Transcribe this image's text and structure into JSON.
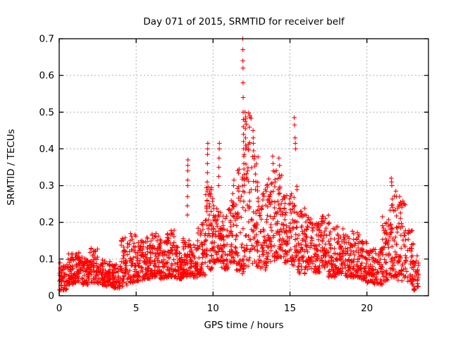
{
  "window": {
    "background": "#ffffff"
  },
  "chart_data": {
    "type": "scatter",
    "title": "Day 071 of 2015, SRMTID for receiver belf",
    "xlabel": "GPS time / hours",
    "ylabel": "SRMTID / TECUs",
    "xlim": [
      0,
      24
    ],
    "ylim": [
      0,
      0.7
    ],
    "xtick_values": [
      0,
      5,
      10,
      15,
      20
    ],
    "xtick_labels": [
      "0",
      "5",
      "10",
      "15",
      "20"
    ],
    "ytick_values": [
      0,
      0.1,
      0.2,
      0.3,
      0.4,
      0.5,
      0.6,
      0.7
    ],
    "ytick_labels": [
      "0",
      "0.1",
      "0.2",
      "0.3",
      "0.4",
      "0.5",
      "0.6",
      "0.7"
    ],
    "grid": true,
    "legend": null,
    "marker": "plus",
    "colors": {
      "marker": "#ff0000",
      "grid": "#b0b0b0",
      "axis": "#000000",
      "text": "#000000",
      "background": "#ffffff"
    },
    "bins_format": "[t_start_hours, value_min_TECUs, value_max_TECUs, point_count] per 0.5 h bin",
    "bins": [
      [
        0.0,
        0.015,
        0.09,
        50
      ],
      [
        0.5,
        0.03,
        0.115,
        55
      ],
      [
        1.0,
        0.035,
        0.12,
        55
      ],
      [
        1.5,
        0.03,
        0.105,
        50
      ],
      [
        2.0,
        0.035,
        0.13,
        55
      ],
      [
        2.5,
        0.03,
        0.1,
        50
      ],
      [
        3.0,
        0.025,
        0.095,
        50
      ],
      [
        3.5,
        0.02,
        0.085,
        50
      ],
      [
        4.0,
        0.025,
        0.16,
        50
      ],
      [
        4.5,
        0.035,
        0.17,
        52
      ],
      [
        5.0,
        0.04,
        0.15,
        58
      ],
      [
        5.5,
        0.045,
        0.16,
        58
      ],
      [
        6.0,
        0.05,
        0.17,
        58
      ],
      [
        6.5,
        0.045,
        0.155,
        58
      ],
      [
        7.0,
        0.05,
        0.18,
        58
      ],
      [
        7.5,
        0.045,
        0.14,
        52
      ],
      [
        8.0,
        0.05,
        0.16,
        52
      ],
      [
        8.5,
        0.05,
        0.14,
        52
      ],
      [
        9.0,
        0.055,
        0.2,
        52
      ],
      [
        9.5,
        0.07,
        0.3,
        58
      ],
      [
        10.0,
        0.09,
        0.25,
        58
      ],
      [
        10.5,
        0.07,
        0.22,
        52
      ],
      [
        11.0,
        0.09,
        0.28,
        52
      ],
      [
        11.5,
        0.06,
        0.35,
        52
      ],
      [
        12.0,
        0.08,
        0.5,
        58
      ],
      [
        12.5,
        0.08,
        0.4,
        52
      ],
      [
        13.0,
        0.07,
        0.3,
        52
      ],
      [
        13.5,
        0.09,
        0.33,
        52
      ],
      [
        14.0,
        0.1,
        0.35,
        58
      ],
      [
        14.5,
        0.09,
        0.28,
        52
      ],
      [
        15.0,
        0.08,
        0.3,
        52
      ],
      [
        15.5,
        0.06,
        0.25,
        52
      ],
      [
        16.0,
        0.07,
        0.22,
        52
      ],
      [
        16.5,
        0.06,
        0.2,
        52
      ],
      [
        17.0,
        0.07,
        0.22,
        52
      ],
      [
        17.5,
        0.05,
        0.2,
        52
      ],
      [
        18.0,
        0.06,
        0.19,
        52
      ],
      [
        18.5,
        0.05,
        0.17,
        52
      ],
      [
        19.0,
        0.05,
        0.18,
        52
      ],
      [
        19.5,
        0.04,
        0.15,
        50
      ],
      [
        20.0,
        0.035,
        0.14,
        50
      ],
      [
        20.5,
        0.03,
        0.13,
        46
      ],
      [
        21.0,
        0.04,
        0.22,
        50
      ],
      [
        21.5,
        0.05,
        0.28,
        55
      ],
      [
        22.0,
        0.04,
        0.26,
        50
      ],
      [
        22.5,
        0.03,
        0.18,
        45
      ],
      [
        23.0,
        0.015,
        0.11,
        32
      ]
    ],
    "peaks_format": "[t_hours, value_TECUs] readable high outlier points",
    "peaks": [
      [
        8.33,
        0.22
      ],
      [
        8.33,
        0.245
      ],
      [
        8.34,
        0.27
      ],
      [
        8.35,
        0.3
      ],
      [
        8.35,
        0.315
      ],
      [
        8.36,
        0.34
      ],
      [
        8.36,
        0.355
      ],
      [
        8.37,
        0.37
      ],
      [
        9.6,
        0.23
      ],
      [
        9.61,
        0.26
      ],
      [
        9.62,
        0.285
      ],
      [
        9.62,
        0.31
      ],
      [
        9.63,
        0.335
      ],
      [
        9.63,
        0.36
      ],
      [
        9.64,
        0.385
      ],
      [
        9.65,
        0.4
      ],
      [
        9.66,
        0.415
      ],
      [
        9.75,
        0.22
      ],
      [
        9.76,
        0.25
      ],
      [
        9.77,
        0.28
      ],
      [
        10.36,
        0.3
      ],
      [
        10.37,
        0.325
      ],
      [
        10.38,
        0.35
      ],
      [
        10.39,
        0.375
      ],
      [
        10.4,
        0.4
      ],
      [
        10.41,
        0.415
      ],
      [
        11.33,
        0.3
      ],
      [
        11.36,
        0.315
      ],
      [
        11.93,
        0.7
      ],
      [
        11.94,
        0.67
      ],
      [
        11.94,
        0.64
      ],
      [
        11.95,
        0.62
      ],
      [
        11.95,
        0.58
      ],
      [
        11.96,
        0.54
      ],
      [
        11.96,
        0.5
      ],
      [
        11.97,
        0.48
      ],
      [
        11.97,
        0.46
      ],
      [
        11.98,
        0.44
      ],
      [
        11.98,
        0.42
      ],
      [
        11.99,
        0.4
      ],
      [
        12.0,
        0.38
      ],
      [
        12.0,
        0.36
      ],
      [
        12.01,
        0.345
      ],
      [
        12.02,
        0.33
      ],
      [
        12.03,
        0.315
      ],
      [
        12.08,
        0.5
      ],
      [
        12.09,
        0.475
      ],
      [
        12.1,
        0.455
      ],
      [
        12.11,
        0.43
      ],
      [
        12.12,
        0.41
      ],
      [
        12.6,
        0.45
      ],
      [
        12.61,
        0.43
      ],
      [
        12.62,
        0.415
      ],
      [
        12.63,
        0.395
      ],
      [
        13.88,
        0.38
      ],
      [
        13.9,
        0.36
      ],
      [
        13.92,
        0.34
      ],
      [
        14.28,
        0.375
      ],
      [
        14.32,
        0.355
      ],
      [
        15.28,
        0.485
      ],
      [
        15.3,
        0.465
      ],
      [
        15.33,
        0.43
      ],
      [
        15.35,
        0.415
      ],
      [
        15.37,
        0.4
      ],
      [
        21.58,
        0.32
      ],
      [
        21.6,
        0.31
      ],
      [
        21.62,
        0.3
      ],
      [
        21.88,
        0.285
      ],
      [
        21.92,
        0.27
      ],
      [
        22.12,
        0.27
      ],
      [
        22.18,
        0.255
      ]
    ],
    "t_max_data": 23.35
  }
}
